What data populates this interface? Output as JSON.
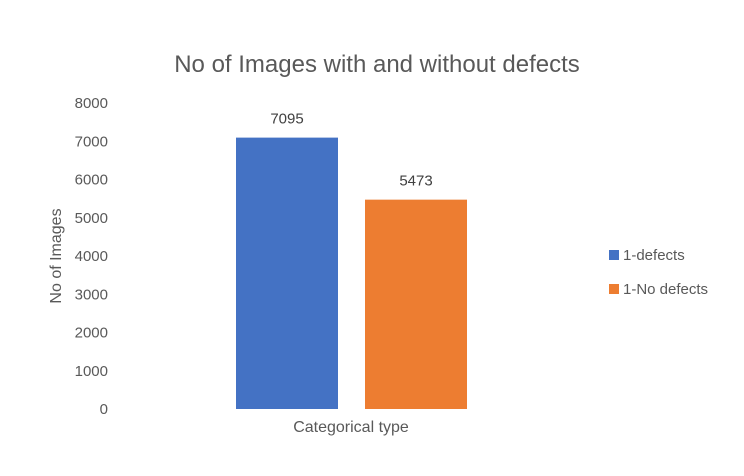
{
  "chart_data": {
    "type": "bar",
    "title": "No of Images with and without defects",
    "xlabel": "Categorical type",
    "ylabel": "No of Images",
    "categories": [
      "Categorical type"
    ],
    "series": [
      {
        "name": "1-defects",
        "values": [
          7095
        ],
        "color": "#4472C4"
      },
      {
        "name": "1-No defects",
        "values": [
          5473
        ],
        "color": "#ED7D31"
      }
    ],
    "ylim": [
      0,
      8000
    ],
    "yticks": [
      0,
      1000,
      2000,
      3000,
      4000,
      5000,
      6000,
      7000,
      8000
    ],
    "grid": false,
    "legend": "right",
    "data_labels": true
  }
}
